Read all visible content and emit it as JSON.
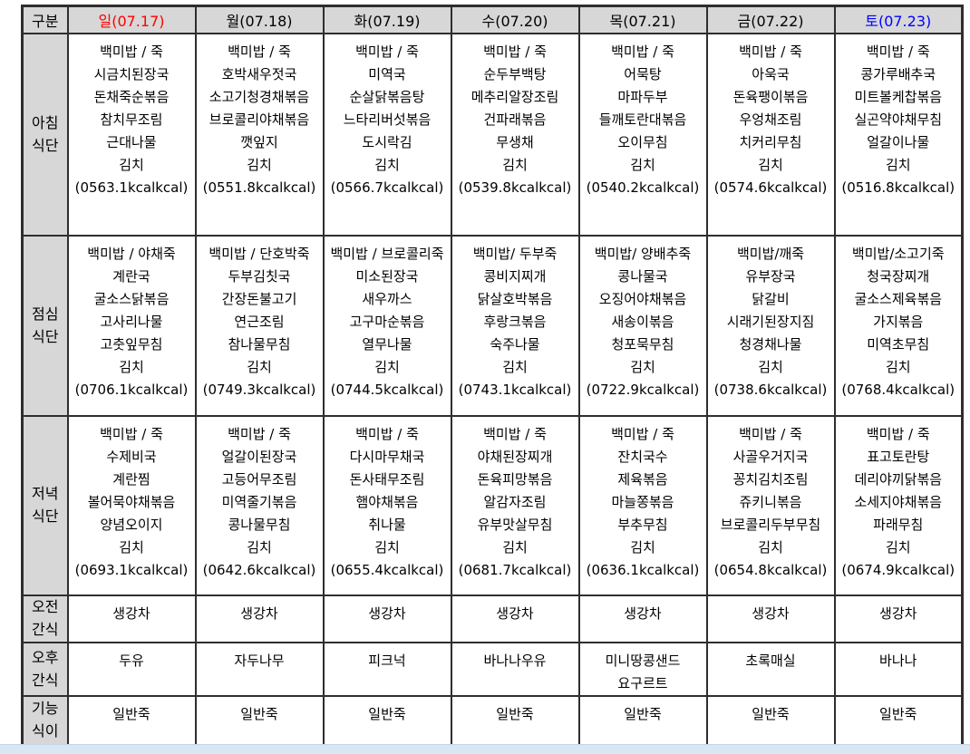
{
  "page": {
    "background": "#ffffff",
    "header_background": "#d7d7d7",
    "border_color": "#2e2e2e",
    "sunday_color": "#ff0000",
    "saturday_color": "#0000ff",
    "footer_bar_color": "#d8e7f3"
  },
  "table": {
    "corner_label": "구분",
    "columns": [
      {
        "id": "sun",
        "label": "일(07.17)",
        "color": "#ff0000"
      },
      {
        "id": "mon",
        "label": "월(07.18)",
        "color": "#000000"
      },
      {
        "id": "tue",
        "label": "화(07.19)",
        "color": "#000000"
      },
      {
        "id": "wed",
        "label": "수(07.20)",
        "color": "#000000"
      },
      {
        "id": "thu",
        "label": "목(07.21)",
        "color": "#000000"
      },
      {
        "id": "fri",
        "label": "금(07.22)",
        "color": "#000000"
      },
      {
        "id": "sat",
        "label": "토(07.23)",
        "color": "#0000ff"
      }
    ],
    "rows": [
      {
        "id": "breakfast",
        "label_lines": [
          "아침",
          "식단"
        ],
        "cells": [
          [
            "백미밥 / 죽",
            "시금치된장국",
            "돈채죽순볶음",
            "참치무조림",
            "근대나물",
            "김치",
            "(0563.1kcalkcal)"
          ],
          [
            "백미밥 / 죽",
            "호박새우젓국",
            "소고기청경채볶음",
            "브로콜리야채볶음",
            "깻잎지",
            "김치",
            "(0551.8kcalkcal)"
          ],
          [
            "백미밥 / 죽",
            "미역국",
            "순살닭볶음탕",
            "느타리버섯볶음",
            "도시락김",
            "김치",
            "(0566.7kcalkcal)"
          ],
          [
            "백미밥 / 죽",
            "순두부백탕",
            "메추리알장조림",
            "건파래볶음",
            "무생채",
            "김치",
            "(0539.8kcalkcal)"
          ],
          [
            "백미밥 / 죽",
            "어묵탕",
            "마파두부",
            "들깨토란대볶음",
            "오이무침",
            "김치",
            "(0540.2kcalkcal)"
          ],
          [
            "백미밥 / 죽",
            "아욱국",
            "돈육팽이볶음",
            "우엉채조림",
            "치커리무침",
            "김치",
            "(0574.6kcalkcal)"
          ],
          [
            "백미밥 / 죽",
            "콩가루배추국",
            "미트볼케찹볶음",
            "실곤약야채무침",
            "얼갈이나물",
            "김치",
            "(0516.8kcalkcal)"
          ]
        ]
      },
      {
        "id": "lunch",
        "label_lines": [
          "점심",
          "식단"
        ],
        "cells": [
          [
            "백미밥 / 야채죽",
            "계란국",
            "굴소스닭볶음",
            "고사리나물",
            "고춧잎무침",
            "김치",
            "(0706.1kcalkcal)"
          ],
          [
            "백미밥 / 단호박죽",
            "두부김칫국",
            "간장돈불고기",
            "연근조림",
            "참나물무침",
            "김치",
            "(0749.3kcalkcal)"
          ],
          [
            "백미밥 / 브로콜리죽",
            "미소된장국",
            "새우까스",
            "고구마순볶음",
            "열무나물",
            "김치",
            "(0744.5kcalkcal)"
          ],
          [
            "백미밥/ 두부죽",
            "콩비지찌개",
            "닭살호박볶음",
            "후랑크볶음",
            "숙주나물",
            "김치",
            "(0743.1kcalkcal)"
          ],
          [
            "백미밥/ 양배추죽",
            "콩나물국",
            "오징어야채볶음",
            "새송이볶음",
            "청포묵무침",
            "김치",
            "(0722.9kcalkcal)"
          ],
          [
            "백미밥/깨죽",
            "유부장국",
            "닭갈비",
            "시래기된장지짐",
            "청경채나물",
            "김치",
            "(0738.6kcalkcal)"
          ],
          [
            "백미밥/소고기죽",
            "청국장찌개",
            "굴소스제육볶음",
            "가지볶음",
            "미역초무침",
            "김치",
            "(0768.4kcalkcal)"
          ]
        ]
      },
      {
        "id": "dinner",
        "label_lines": [
          "저녁",
          "식단"
        ],
        "cells": [
          [
            "백미밥 / 죽",
            "수제비국",
            "계란찜",
            "볼어묵야채볶음",
            "양념오이지",
            "김치",
            "(0693.1kcalkcal)"
          ],
          [
            "백미밥 / 죽",
            "얼갈이된장국",
            "고등어무조림",
            "미역줄기볶음",
            "콩나물무침",
            "김치",
            "(0642.6kcalkcal)"
          ],
          [
            "백미밥 / 죽",
            "다시마무채국",
            "돈사태무조림",
            "햄야채볶음",
            "취나물",
            "김치",
            "(0655.4kcalkcal)"
          ],
          [
            "백미밥 / 죽",
            "야채된장찌개",
            "돈육피망볶음",
            "알감자조림",
            "유부맛살무침",
            "김치",
            "(0681.7kcalkcal)"
          ],
          [
            "백미밥 / 죽",
            "잔치국수",
            "제육볶음",
            "마늘쫑볶음",
            "부추무침",
            "김치",
            "(0636.1kcalkcal)"
          ],
          [
            "백미밥 / 죽",
            "사골우거지국",
            "꽁치김치조림",
            "쥬키니볶음",
            "브로콜리두부무침",
            "김치",
            "(0654.8kcalkcal)"
          ],
          [
            "백미밥 / 죽",
            "표고토란탕",
            "데리야끼닭볶음",
            "소세지야채볶음",
            "파래무침",
            "김치",
            "(0674.9kcalkcal)"
          ]
        ]
      },
      {
        "id": "snack-am",
        "label_lines": [
          "오전",
          "간식"
        ],
        "cells": [
          [
            "생강차"
          ],
          [
            "생강차"
          ],
          [
            "생강차"
          ],
          [
            "생강차"
          ],
          [
            "생강차"
          ],
          [
            "생강차"
          ],
          [
            "생강차"
          ]
        ]
      },
      {
        "id": "snack-pm",
        "label_lines": [
          "오후",
          "간식"
        ],
        "cells": [
          [
            "두유"
          ],
          [
            "자두나무"
          ],
          [
            "피크넉"
          ],
          [
            "바나나우유"
          ],
          [
            "미니땅콩샌드",
            "요구르트"
          ],
          [
            "초록매실"
          ],
          [
            "바나나"
          ]
        ]
      },
      {
        "id": "functional",
        "label_lines": [
          "기능",
          "식이"
        ],
        "cells": [
          [
            "일반죽"
          ],
          [
            "일반죽"
          ],
          [
            "일반죽"
          ],
          [
            "일반죽"
          ],
          [
            "일반죽"
          ],
          [
            "일반죽"
          ],
          [
            "일반죽"
          ]
        ]
      }
    ]
  }
}
